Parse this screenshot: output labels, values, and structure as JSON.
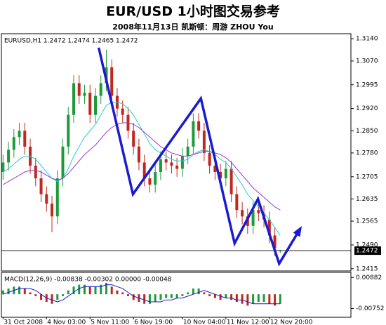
{
  "chart_data": {
    "type": "candlestick",
    "title": "EUR/USD  1小时图交易参考",
    "subtitle": "2008年11月13日   凯斯顿：周游 ZHOU You",
    "header": "EURUSD,H1  1.2472 1.2474 1.2465 1.2472",
    "up_color": "#1f9a3a",
    "down_color": "#c0281e",
    "xlim": [
      -0.3,
      64
    ],
    "xticks": [
      {
        "value": 0,
        "label": "31 Oct 2008"
      },
      {
        "value": 8,
        "label": "4 Nov 03:00"
      },
      {
        "value": 16,
        "label": "5 Nov 11:00"
      },
      {
        "value": 24,
        "label": "6 Nov 19:00"
      },
      {
        "value": 33,
        "label": "10 Nov 04:00"
      },
      {
        "value": 41,
        "label": "11 Nov 12:00"
      },
      {
        "value": 49,
        "label": "12 Nov 20:00"
      }
    ],
    "ylim": [
      1.2408,
      1.3156
    ],
    "yticks": [
      {
        "value": 1.314,
        "label": "1.3140"
      },
      {
        "value": 1.307,
        "label": "1.3070"
      },
      1.2995,
      {
        "value": 1.292,
        "label": "1.2920"
      },
      {
        "value": 1.285,
        "label": "1.2850"
      },
      {
        "value": 1.278,
        "label": "1.2780"
      },
      1.2705,
      1.2635,
      1.2565,
      {
        "value": 1.249,
        "label": "1.2490"
      },
      1.2415
    ],
    "last_price": 1.2472,
    "open": [
      1.272,
      1.275,
      1.279,
      1.283,
      1.285,
      1.28,
      1.274,
      1.27,
      1.265,
      1.262,
      1.258,
      1.27,
      1.28,
      1.29,
      1.3,
      1.296,
      1.297,
      1.29,
      1.296,
      1.3,
      1.305,
      1.296,
      1.292,
      1.29,
      1.285,
      1.28,
      1.275,
      1.27,
      1.268,
      1.272,
      1.276,
      1.275,
      1.274,
      1.273,
      1.277,
      1.28,
      1.288,
      1.285,
      1.278,
      1.274,
      1.272,
      1.27,
      1.273,
      1.265,
      1.26,
      1.258,
      1.255,
      1.26,
      1.259,
      1.257,
      1.252,
      1.2472
    ],
    "high": [
      1.2775,
      1.2815,
      1.2855,
      1.2875,
      1.2875,
      1.2825,
      1.2765,
      1.2725,
      1.2675,
      1.2645,
      1.2725,
      1.2825,
      1.2925,
      1.3025,
      1.3025,
      1.2995,
      1.2995,
      1.2985,
      1.3025,
      1.3105,
      1.3075,
      1.2985,
      1.2945,
      1.2925,
      1.2875,
      1.2825,
      1.2775,
      1.2725,
      1.2745,
      1.2785,
      1.2785,
      1.2775,
      1.2765,
      1.2795,
      1.2825,
      1.2905,
      1.2905,
      1.2875,
      1.2805,
      1.2765,
      1.2745,
      1.2755,
      1.2755,
      1.2675,
      1.2625,
      1.2605,
      1.2625,
      1.2625,
      1.2615,
      1.2595,
      1.2545,
      1.2474
    ],
    "low": [
      1.2695,
      1.2725,
      1.2765,
      1.2805,
      1.2775,
      1.2715,
      1.2675,
      1.2625,
      1.2595,
      1.253,
      1.2555,
      1.2675,
      1.2775,
      1.2875,
      1.2935,
      1.2935,
      1.2875,
      1.2875,
      1.2935,
      1.2975,
      1.2935,
      1.2895,
      1.2875,
      1.2825,
      1.2775,
      1.2725,
      1.2675,
      1.2655,
      1.2655,
      1.2695,
      1.2725,
      1.2715,
      1.2705,
      1.2705,
      1.2745,
      1.2775,
      1.2825,
      1.2755,
      1.2715,
      1.2695,
      1.2675,
      1.2675,
      1.2625,
      1.2575,
      1.2555,
      1.2525,
      1.2525,
      1.2565,
      1.2545,
      1.2495,
      1.2455,
      1.2465
    ],
    "close": [
      1.275,
      1.279,
      1.283,
      1.285,
      1.28,
      1.274,
      1.27,
      1.265,
      1.262,
      1.258,
      1.27,
      1.28,
      1.29,
      1.3,
      1.296,
      1.297,
      1.29,
      1.296,
      1.3,
      1.305,
      1.296,
      1.292,
      1.29,
      1.285,
      1.28,
      1.275,
      1.27,
      1.268,
      1.272,
      1.276,
      1.275,
      1.274,
      1.273,
      1.277,
      1.28,
      1.288,
      1.285,
      1.278,
      1.274,
      1.272,
      1.27,
      1.273,
      1.265,
      1.26,
      1.258,
      1.255,
      1.26,
      1.259,
      1.257,
      1.252,
      1.248,
      1.2472
    ],
    "overlays": [
      {
        "color": "#2ec8d8",
        "values": [
          1.272,
          1.273,
          1.2745,
          1.276,
          1.277,
          1.277,
          1.276,
          1.274,
          1.272,
          1.27,
          1.269,
          1.27,
          1.273,
          1.277,
          1.28,
          1.283,
          1.285,
          1.287,
          1.29,
          1.293,
          1.294,
          1.294,
          1.2935,
          1.292,
          1.29,
          1.287,
          1.284,
          1.281,
          1.279,
          1.278,
          1.277,
          1.276,
          1.2755,
          1.2755,
          1.276,
          1.2775,
          1.2785,
          1.279,
          1.2785,
          1.2775,
          1.276,
          1.275,
          1.273,
          1.2705,
          1.268,
          1.265,
          1.263,
          1.261,
          1.259,
          1.257,
          1.2545,
          1.252
        ]
      },
      {
        "color": "#9a3bd0",
        "values": [
          1.268,
          1.269,
          1.27,
          1.271,
          1.272,
          1.2725,
          1.2725,
          1.272,
          1.271,
          1.27,
          1.2695,
          1.27,
          1.2715,
          1.2735,
          1.2755,
          1.2775,
          1.279,
          1.2805,
          1.2825,
          1.2845,
          1.286,
          1.287,
          1.2875,
          1.2875,
          1.287,
          1.286,
          1.2845,
          1.283,
          1.2815,
          1.28,
          1.279,
          1.278,
          1.2775,
          1.277,
          1.277,
          1.2775,
          1.278,
          1.2785,
          1.2785,
          1.278,
          1.2775,
          1.2765,
          1.275,
          1.273,
          1.271,
          1.269,
          1.267,
          1.2655,
          1.264,
          1.2625,
          1.261,
          1.26
        ]
      }
    ],
    "annotation": {
      "color": "#1a1ad0",
      "x": [
        17.6,
        23.9,
        36.4,
        42.6,
        46.9,
        50.8,
        54.7
      ],
      "y": [
        1.3112,
        1.265,
        1.2952,
        1.2495,
        1.2635,
        1.2431,
        1.2542
      ]
    },
    "macd": {
      "label": "MACD(12,26,9) -0.00838 -0.00302 0.00000 -0.00048",
      "ylim": [
        -0.0121,
        0.0115
      ],
      "yticks": [
        0.00882,
        -0.00752
      ],
      "values": [
        0.002,
        0.003,
        0.004,
        0.004,
        0.003,
        0.001,
        -0.001,
        -0.003,
        -0.004,
        -0.005,
        -0.003,
        -0.001,
        0.002,
        0.004,
        0.005,
        0.005,
        0.004,
        0.004,
        0.005,
        0.006,
        0.004,
        0.002,
        0.001,
        -0.001,
        -0.003,
        -0.004,
        -0.005,
        -0.005,
        -0.004,
        -0.003,
        -0.002,
        -0.002,
        -0.002,
        -0.001,
        0.001,
        0.003,
        0.003,
        0.001,
        -0.001,
        -0.002,
        -0.003,
        -0.002,
        -0.003,
        -0.004,
        -0.005,
        -0.006,
        -0.005,
        -0.004,
        -0.004,
        -0.005,
        -0.006,
        -0.005
      ],
      "signal": [
        0.0,
        0.001,
        0.002,
        0.003,
        0.003,
        0.003,
        0.002,
        0.0,
        -0.002,
        -0.003,
        -0.004,
        -0.003,
        -0.001,
        0.001,
        0.003,
        0.004,
        0.004,
        0.004,
        0.004,
        0.005,
        0.005,
        0.004,
        0.003,
        0.001,
        -0.001,
        -0.002,
        -0.003,
        -0.004,
        -0.004,
        -0.004,
        -0.003,
        -0.003,
        -0.002,
        -0.002,
        -0.001,
        0.0,
        0.001,
        0.002,
        0.001,
        0.0,
        -0.001,
        -0.002,
        -0.002,
        -0.003,
        -0.003,
        -0.004,
        -0.005,
        -0.005,
        -0.005,
        -0.005,
        -0.005,
        -0.005
      ],
      "signal_color": "#1a1ad0"
    }
  }
}
